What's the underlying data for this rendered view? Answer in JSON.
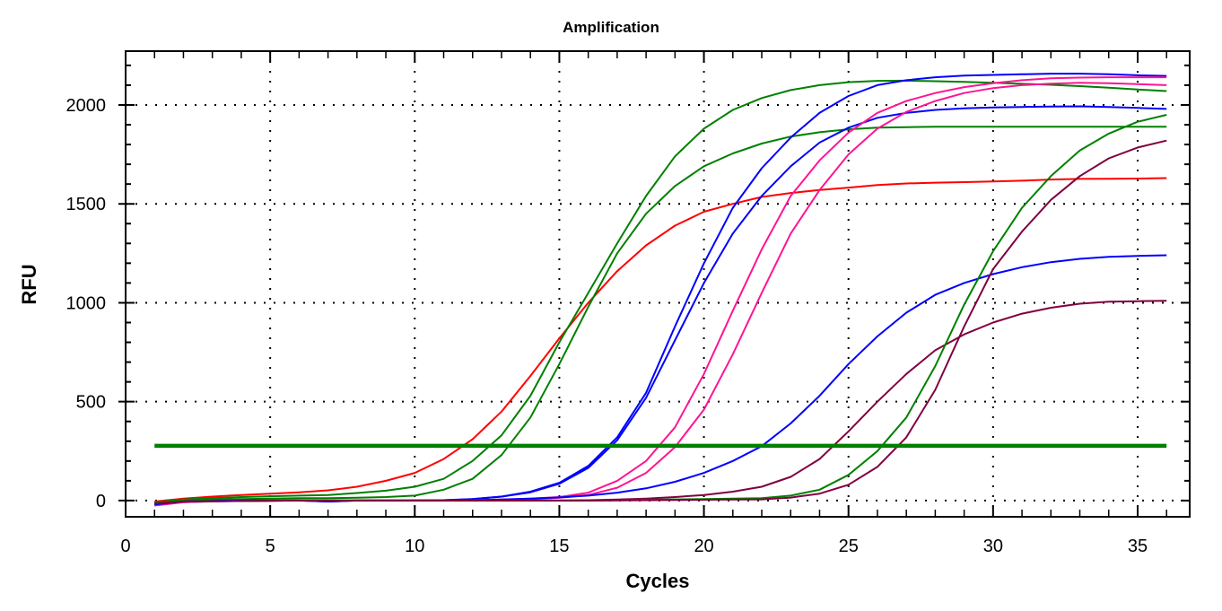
{
  "chart_data": {
    "type": "line",
    "title": "Amplification",
    "xlabel": "Cycles",
    "ylabel": "RFU",
    "xlim": [
      0,
      36.8
    ],
    "ylim": [
      -82,
      2272
    ],
    "x_ticks": [
      0,
      5,
      10,
      15,
      20,
      25,
      30,
      35
    ],
    "y_ticks": [
      0,
      500,
      1000,
      1500,
      2000
    ],
    "x_tick_labels": [
      "0",
      "5",
      "10",
      "15",
      "20",
      "25",
      "30",
      "35"
    ],
    "y_tick_labels": [
      "0",
      "500",
      "1000",
      "1500",
      "2000"
    ],
    "grid": true,
    "legend": "none",
    "threshold": {
      "value": 277,
      "x_range": [
        1,
        36
      ],
      "color": "#008000"
    },
    "x": [
      1,
      2,
      3,
      4,
      5,
      6,
      7,
      8,
      9,
      10,
      11,
      12,
      13,
      14,
      15,
      16,
      17,
      18,
      19,
      20,
      21,
      22,
      23,
      24,
      25,
      26,
      27,
      28,
      29,
      30,
      31,
      32,
      33,
      34,
      35,
      36
    ],
    "series": [
      {
        "name": "red-1",
        "color": "#ff0000",
        "values": [
          -5,
          10,
          20,
          28,
          35,
          42,
          52,
          70,
          100,
          140,
          210,
          310,
          450,
          630,
          820,
          1000,
          1160,
          1290,
          1390,
          1460,
          1500,
          1535,
          1555,
          1570,
          1582,
          1595,
          1603,
          1607,
          1610,
          1613,
          1617,
          1623,
          1626,
          1627,
          1628,
          1630
        ]
      },
      {
        "name": "green-1",
        "color": "#008000",
        "values": [
          -10,
          5,
          12,
          18,
          22,
          25,
          28,
          38,
          50,
          70,
          110,
          200,
          330,
          530,
          800,
          1050,
          1300,
          1540,
          1740,
          1880,
          1975,
          2035,
          2075,
          2100,
          2115,
          2122,
          2123,
          2120,
          2117,
          2112,
          2107,
          2102,
          2095,
          2087,
          2078,
          2070
        ]
      },
      {
        "name": "green-2",
        "color": "#008000",
        "values": [
          -15,
          0,
          5,
          8,
          10,
          12,
          12,
          14,
          18,
          25,
          55,
          110,
          230,
          420,
          690,
          980,
          1250,
          1450,
          1590,
          1690,
          1755,
          1805,
          1840,
          1862,
          1877,
          1885,
          1888,
          1890,
          1890,
          1890,
          1890,
          1890,
          1890,
          1890,
          1890,
          1890
        ]
      },
      {
        "name": "blue-1",
        "color": "#0000ff",
        "values": [
          -20,
          -5,
          -2,
          0,
          0,
          0,
          -5,
          0,
          0,
          0,
          2,
          8,
          20,
          45,
          90,
          175,
          320,
          545,
          880,
          1200,
          1480,
          1680,
          1835,
          1960,
          2045,
          2100,
          2125,
          2140,
          2148,
          2152,
          2155,
          2158,
          2158,
          2155,
          2150,
          2147
        ]
      },
      {
        "name": "blue-2",
        "color": "#0000ff",
        "values": [
          -20,
          -5,
          -2,
          0,
          0,
          0,
          -5,
          0,
          0,
          0,
          2,
          8,
          20,
          42,
          85,
          165,
          305,
          520,
          810,
          1100,
          1350,
          1540,
          1690,
          1810,
          1885,
          1935,
          1960,
          1975,
          1983,
          1987,
          1990,
          1992,
          1993,
          1990,
          1985,
          1980
        ]
      },
      {
        "name": "pink-1",
        "color": "#ff1493",
        "values": [
          -25,
          -8,
          -4,
          -2,
          -1,
          0,
          0,
          0,
          0,
          0,
          0,
          2,
          5,
          10,
          18,
          40,
          100,
          200,
          370,
          640,
          960,
          1270,
          1540,
          1720,
          1860,
          1960,
          2020,
          2060,
          2090,
          2110,
          2125,
          2135,
          2138,
          2140,
          2140,
          2140
        ]
      },
      {
        "name": "pink-2",
        "color": "#ff1493",
        "values": [
          -25,
          -8,
          -4,
          -2,
          -1,
          0,
          0,
          0,
          0,
          0,
          0,
          2,
          4,
          8,
          14,
          28,
          65,
          140,
          270,
          460,
          740,
          1050,
          1350,
          1570,
          1750,
          1880,
          1965,
          2020,
          2060,
          2085,
          2100,
          2108,
          2112,
          2110,
          2105,
          2100
        ]
      },
      {
        "name": "blue-3",
        "color": "#0000ff",
        "values": [
          -20,
          -5,
          -2,
          0,
          0,
          0,
          -2,
          0,
          0,
          0,
          0,
          2,
          5,
          10,
          16,
          25,
          40,
          62,
          95,
          140,
          200,
          275,
          390,
          530,
          690,
          830,
          950,
          1040,
          1100,
          1145,
          1180,
          1205,
          1222,
          1232,
          1237,
          1240
        ]
      },
      {
        "name": "maroon-1",
        "color": "#800040",
        "values": [
          -15,
          -5,
          -3,
          -2,
          -1,
          0,
          0,
          0,
          0,
          0,
          0,
          0,
          0,
          0,
          0,
          2,
          5,
          10,
          18,
          28,
          45,
          70,
          120,
          210,
          350,
          500,
          640,
          760,
          840,
          900,
          945,
          975,
          995,
          1005,
          1008,
          1010
        ]
      },
      {
        "name": "green-3",
        "color": "#008000",
        "values": [
          -10,
          -5,
          -3,
          -2,
          -1,
          0,
          0,
          0,
          0,
          0,
          0,
          0,
          0,
          0,
          0,
          0,
          2,
          4,
          6,
          8,
          10,
          12,
          25,
          55,
          130,
          250,
          420,
          680,
          990,
          1260,
          1480,
          1640,
          1770,
          1855,
          1915,
          1950
        ]
      },
      {
        "name": "maroon-2",
        "color": "#800040",
        "values": [
          -15,
          -5,
          -3,
          -2,
          -1,
          0,
          0,
          0,
          0,
          0,
          0,
          0,
          0,
          0,
          0,
          0,
          1,
          2,
          3,
          4,
          5,
          6,
          15,
          35,
          80,
          170,
          320,
          560,
          880,
          1170,
          1360,
          1520,
          1640,
          1730,
          1785,
          1820
        ]
      }
    ]
  }
}
